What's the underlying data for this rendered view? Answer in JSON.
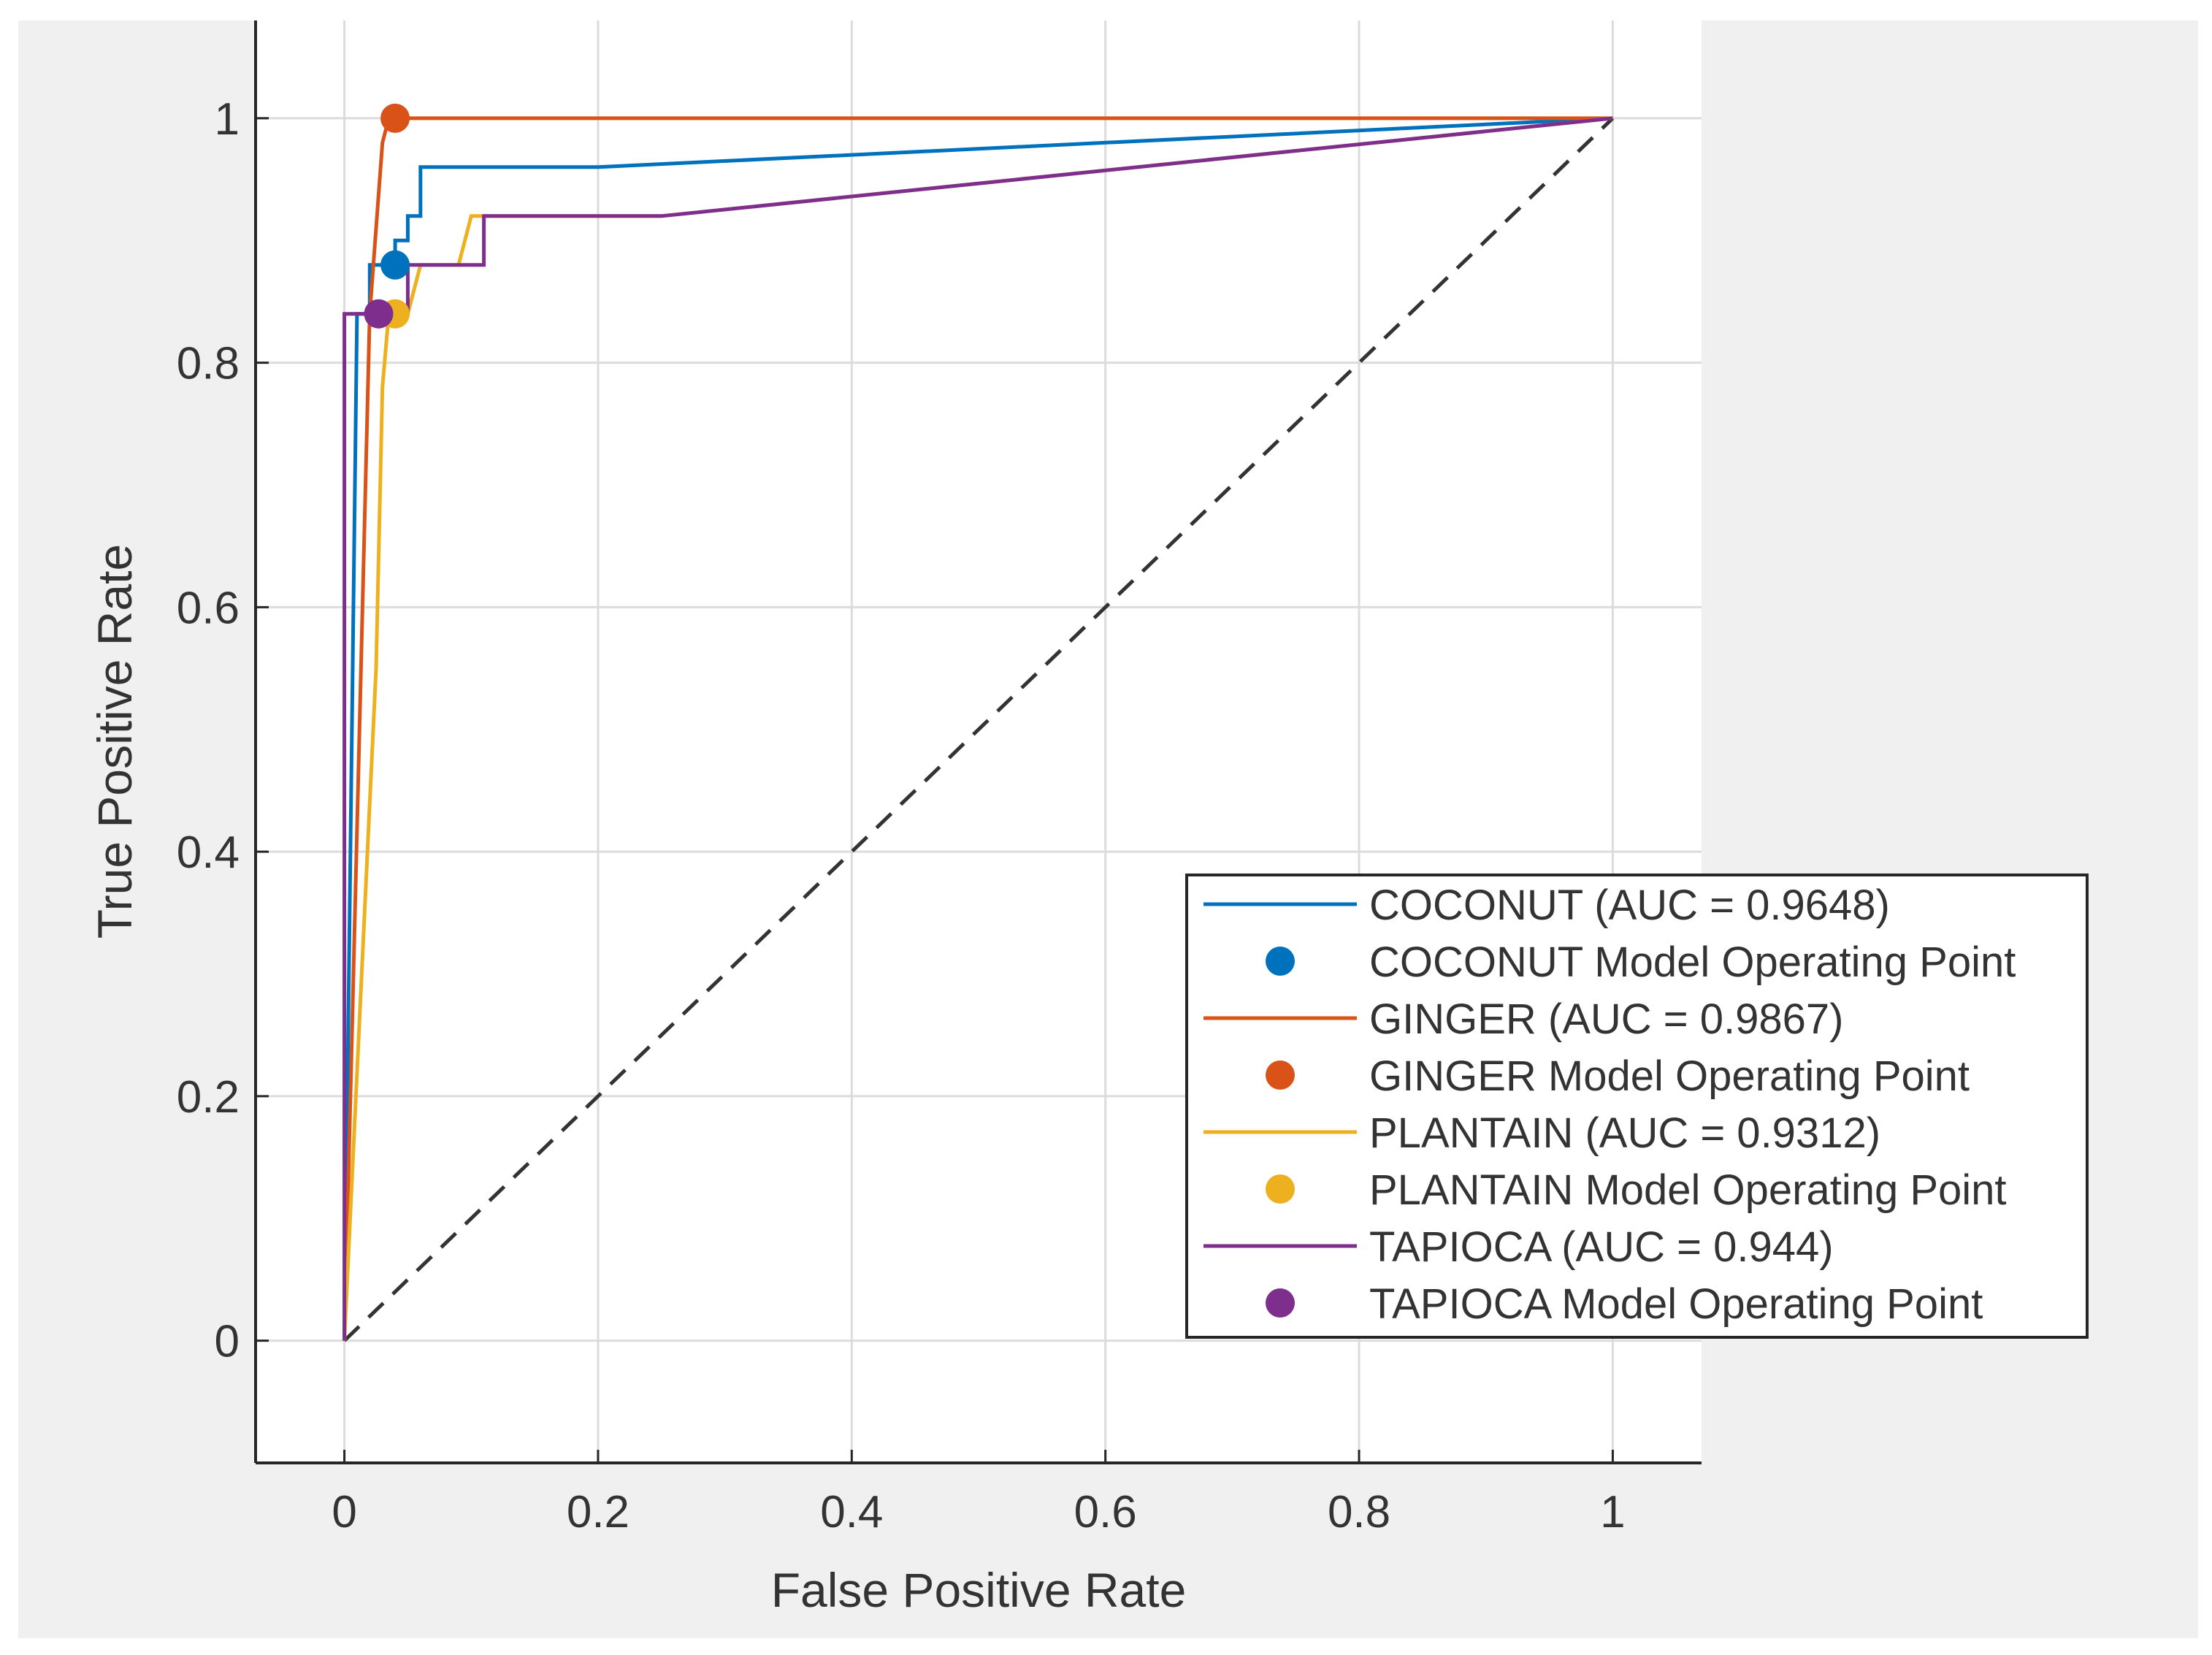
{
  "chart_data": {
    "type": "line",
    "title": "",
    "xlabel": "False Positive Rate",
    "ylabel": "True Positive Rate",
    "xlim": [
      -0.07,
      1.07
    ],
    "ylim": [
      -0.1,
      1.08
    ],
    "xticks": [
      0,
      0.2,
      0.4,
      0.6,
      0.8,
      1
    ],
    "xtick_labels": [
      "0",
      "0.2",
      "0.4",
      "0.6",
      "0.8",
      "1"
    ],
    "yticks": [
      0,
      0.2,
      0.4,
      0.6,
      0.8,
      1
    ],
    "ytick_labels": [
      "0",
      "0.2",
      "0.4",
      "0.6",
      "0.8",
      "1"
    ],
    "grid": true,
    "legend_position": "lower-right",
    "diagonal": {
      "x": [
        0,
        1
      ],
      "y": [
        0,
        1
      ],
      "style": "dashed",
      "color": "#333333"
    },
    "series": [
      {
        "name": "COCONUT",
        "legend_label": "COCONUT (AUC = 0.9648)",
        "color": "#0072BD",
        "x": [
          0,
          0.01,
          0.02,
          0.02,
          0.04,
          0.04,
          0.05,
          0.05,
          0.06,
          0.06,
          0.2,
          1
        ],
        "y": [
          0,
          0.84,
          0.84,
          0.88,
          0.88,
          0.9,
          0.9,
          0.92,
          0.92,
          0.96,
          0.96,
          1
        ]
      },
      {
        "name": "GINGER",
        "legend_label": "GINGER (AUC = 0.9867)",
        "color": "#D95319",
        "x": [
          0,
          0.02,
          0.03,
          0.035,
          1
        ],
        "y": [
          0,
          0.84,
          0.98,
          1,
          1
        ]
      },
      {
        "name": "PLANTAIN",
        "legend_label": "PLANTAIN (AUC = 0.9312)",
        "color": "#EDB120",
        "x": [
          0,
          0.025,
          0.03,
          0.035,
          0.05,
          0.06,
          0.09,
          0.1,
          0.25,
          1
        ],
        "y": [
          0,
          0.55,
          0.78,
          0.84,
          0.84,
          0.88,
          0.88,
          0.92,
          0.92,
          1
        ]
      },
      {
        "name": "TAPIOCA",
        "legend_label": "TAPIOCA (AUC = 0.944)",
        "color": "#7E2F8E",
        "x": [
          0,
          0,
          0.02,
          0.05,
          0.05,
          0.11,
          0.11,
          0.25,
          1
        ],
        "y": [
          0,
          0.84,
          0.84,
          0.84,
          0.88,
          0.88,
          0.92,
          0.92,
          1
        ]
      }
    ],
    "operating_points": [
      {
        "name": "COCONUT",
        "legend_label": "COCONUT Model Operating Point",
        "color": "#0072BD",
        "x": 0.04,
        "y": 0.88
      },
      {
        "name": "GINGER",
        "legend_label": "GINGER Model Operating Point",
        "color": "#D95319",
        "x": 0.04,
        "y": 1.0
      },
      {
        "name": "PLANTAIN",
        "legend_label": "PLANTAIN Model Operating Point",
        "color": "#EDB120",
        "x": 0.04,
        "y": 0.84
      },
      {
        "name": "TAPIOCA",
        "legend_label": "TAPIOCA Model Operating Point",
        "color": "#7E2F8E",
        "x": 0.027,
        "y": 0.84
      }
    ]
  }
}
